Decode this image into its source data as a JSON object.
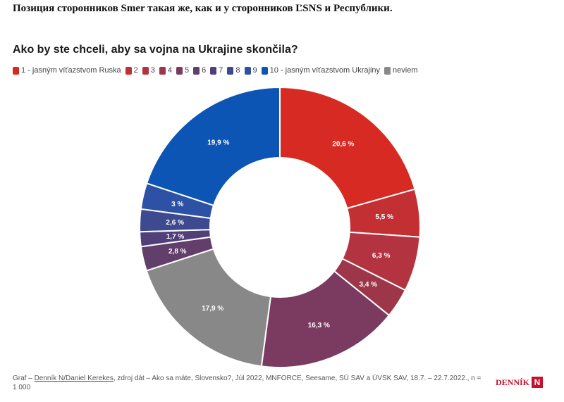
{
  "heading": "Позиция сторонников Smer такая же, как и у сторонников ĽSNS и Республики.",
  "chart_data": {
    "type": "pie",
    "donut": true,
    "title": "Ako by ste chceli, aby sa vojna na Ukrajine skončila?",
    "legend_position": "top",
    "categories": [
      "1 - jasným víťazstvom Ruska",
      "2",
      "3",
      "4",
      "5",
      "6",
      "7",
      "8",
      "9",
      "10 - jasným víťazstvom Ukrajiny",
      "neviem"
    ],
    "series": [
      {
        "values": [
          20.6,
          5.5,
          6.3,
          3.4,
          16.3,
          2.8,
          1.7,
          2.6,
          3,
          19.9,
          17.9
        ],
        "value_labels": [
          "20,6 %",
          "5,5 %",
          "6,3 %",
          "3,4 %",
          "16,3 %",
          "2,8 %",
          "1,7 %",
          "2,6 %",
          "3 %",
          "19,9 %",
          "17,9 %"
        ]
      }
    ],
    "slice_order": [
      0,
      1,
      2,
      3,
      4,
      10,
      5,
      6,
      7,
      8,
      9
    ],
    "colors": [
      "#d62a22",
      "#c33034",
      "#b33440",
      "#9d3648",
      "#7b3a60",
      "#623e6a",
      "#503f78",
      "#3e4a8f",
      "#2d52a5",
      "#0d55b4",
      "#888888"
    ]
  },
  "footer": {
    "prefix": "Graf – ",
    "author": "Denník N/Daniel Kerekes",
    "source": ", zdroj dát – Ako sa máte, Slovensko?, Júl 2022, MNFORCE, Seesame, SÚ SAV a ÚVSK SAV, 18.7. – 22.7.2022., n = 1 000"
  },
  "logo": {
    "text": "DENNÍK",
    "letter": "N"
  }
}
